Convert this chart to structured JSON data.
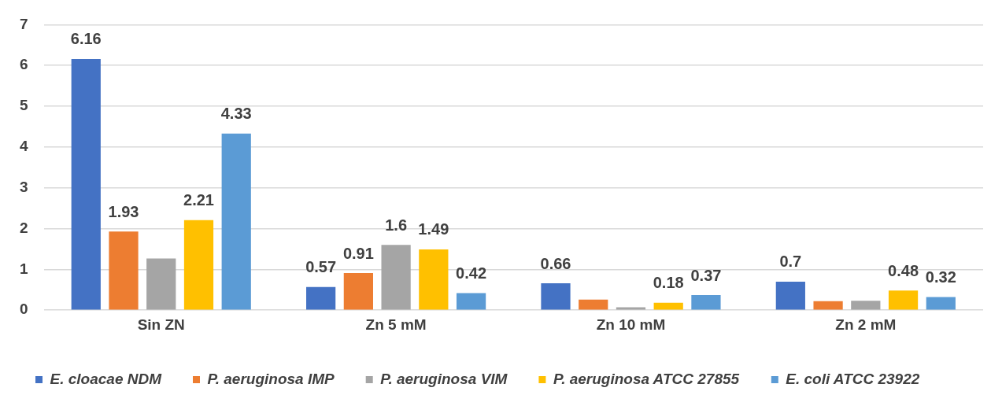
{
  "chart_data": {
    "type": "bar",
    "categories": [
      "Sin ZN",
      "Zn 5 mM",
      "Zn 10 mM",
      "Zn 2 mM"
    ],
    "ylim": [
      0,
      7
    ],
    "yticks": [
      0,
      1,
      2,
      3,
      4,
      5,
      6,
      7
    ],
    "grid": "y",
    "legend": "bottom",
    "series": [
      {
        "name": "E. cloacae NDM",
        "color": "#4472c4",
        "values": [
          6.16,
          0.57,
          0.66,
          0.7
        ],
        "value_labels": [
          "6.16",
          "0.57",
          "0.66",
          "0.7"
        ]
      },
      {
        "name": "P. aeruginosa IMP",
        "color": "#ed7d31",
        "values": [
          1.93,
          0.91,
          0.26,
          0.22
        ],
        "value_labels": [
          "1.93",
          "0.91",
          null,
          null
        ]
      },
      {
        "name": "P. aeruginosa VIM",
        "color": "#a5a5a5",
        "values": [
          1.27,
          1.6,
          0.07,
          0.23
        ],
        "value_labels": [
          null,
          "1.6",
          null,
          null
        ]
      },
      {
        "name": "P. aeruginosa ATCC 27855",
        "color": "#ffc000",
        "values": [
          2.21,
          1.49,
          0.18,
          0.48
        ],
        "value_labels": [
          "2.21",
          "1.49",
          "0.18",
          "0.48"
        ]
      },
      {
        "name": "E. coli ATCC 23922",
        "color": "#5b9bd5",
        "values": [
          4.33,
          0.42,
          0.37,
          0.32
        ],
        "value_labels": [
          "4.33",
          "0.42",
          "0.37",
          "0.32"
        ]
      }
    ]
  }
}
